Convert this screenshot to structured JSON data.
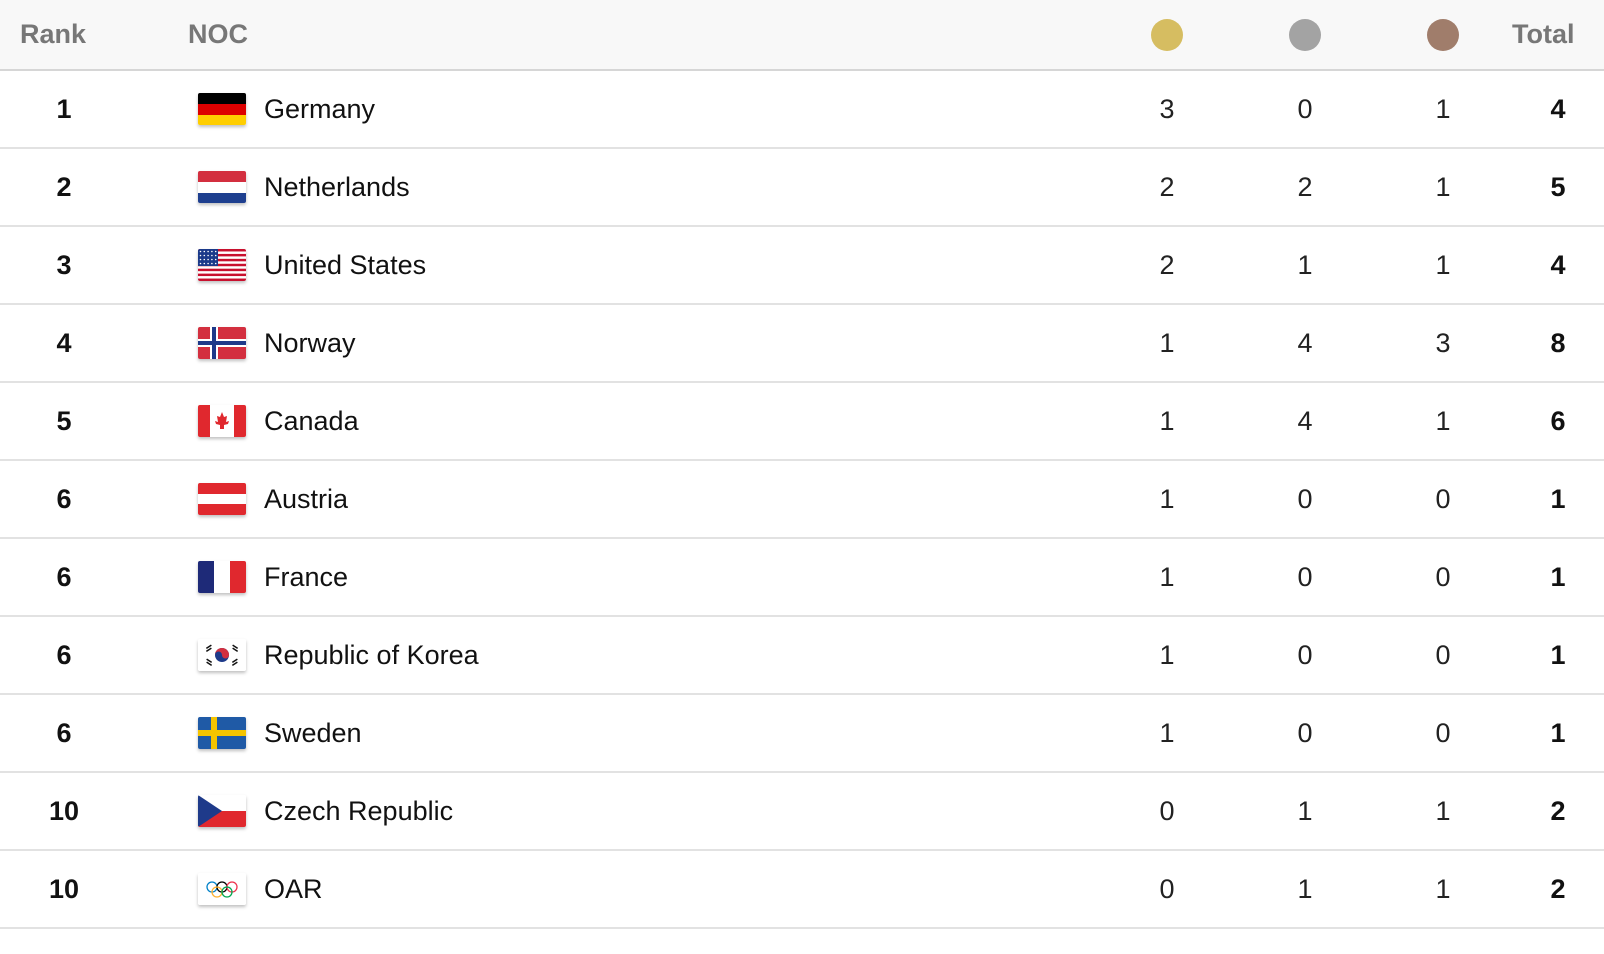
{
  "headers": {
    "rank": "Rank",
    "noc": "NOC",
    "total": "Total"
  },
  "medal_colors": {
    "gold": "#d6bd61",
    "silver": "#a3a3a3",
    "bronze": "#a07d6b"
  },
  "rows": [
    {
      "rank": "1",
      "country": "Germany",
      "flag": "germany-flag",
      "gold": "3",
      "silver": "0",
      "bronze": "1",
      "total": "4"
    },
    {
      "rank": "2",
      "country": "Netherlands",
      "flag": "netherlands-flag",
      "gold": "2",
      "silver": "2",
      "bronze": "1",
      "total": "5"
    },
    {
      "rank": "3",
      "country": "United States",
      "flag": "united-states-flag",
      "gold": "2",
      "silver": "1",
      "bronze": "1",
      "total": "4"
    },
    {
      "rank": "4",
      "country": "Norway",
      "flag": "norway-flag",
      "gold": "1",
      "silver": "4",
      "bronze": "3",
      "total": "8"
    },
    {
      "rank": "5",
      "country": "Canada",
      "flag": "canada-flag",
      "gold": "1",
      "silver": "4",
      "bronze": "1",
      "total": "6"
    },
    {
      "rank": "6",
      "country": "Austria",
      "flag": "austria-flag",
      "gold": "1",
      "silver": "0",
      "bronze": "0",
      "total": "1"
    },
    {
      "rank": "6",
      "country": "France",
      "flag": "france-flag",
      "gold": "1",
      "silver": "0",
      "bronze": "0",
      "total": "1"
    },
    {
      "rank": "6",
      "country": "Republic of Korea",
      "flag": "korea-flag",
      "gold": "1",
      "silver": "0",
      "bronze": "0",
      "total": "1"
    },
    {
      "rank": "6",
      "country": "Sweden",
      "flag": "sweden-flag",
      "gold": "1",
      "silver": "0",
      "bronze": "0",
      "total": "1"
    },
    {
      "rank": "10",
      "country": "Czech Republic",
      "flag": "czech-flag",
      "gold": "0",
      "silver": "1",
      "bronze": "1",
      "total": "2"
    },
    {
      "rank": "10",
      "country": "OAR",
      "flag": "olympic-rings-flag",
      "gold": "0",
      "silver": "1",
      "bronze": "1",
      "total": "2"
    }
  ]
}
